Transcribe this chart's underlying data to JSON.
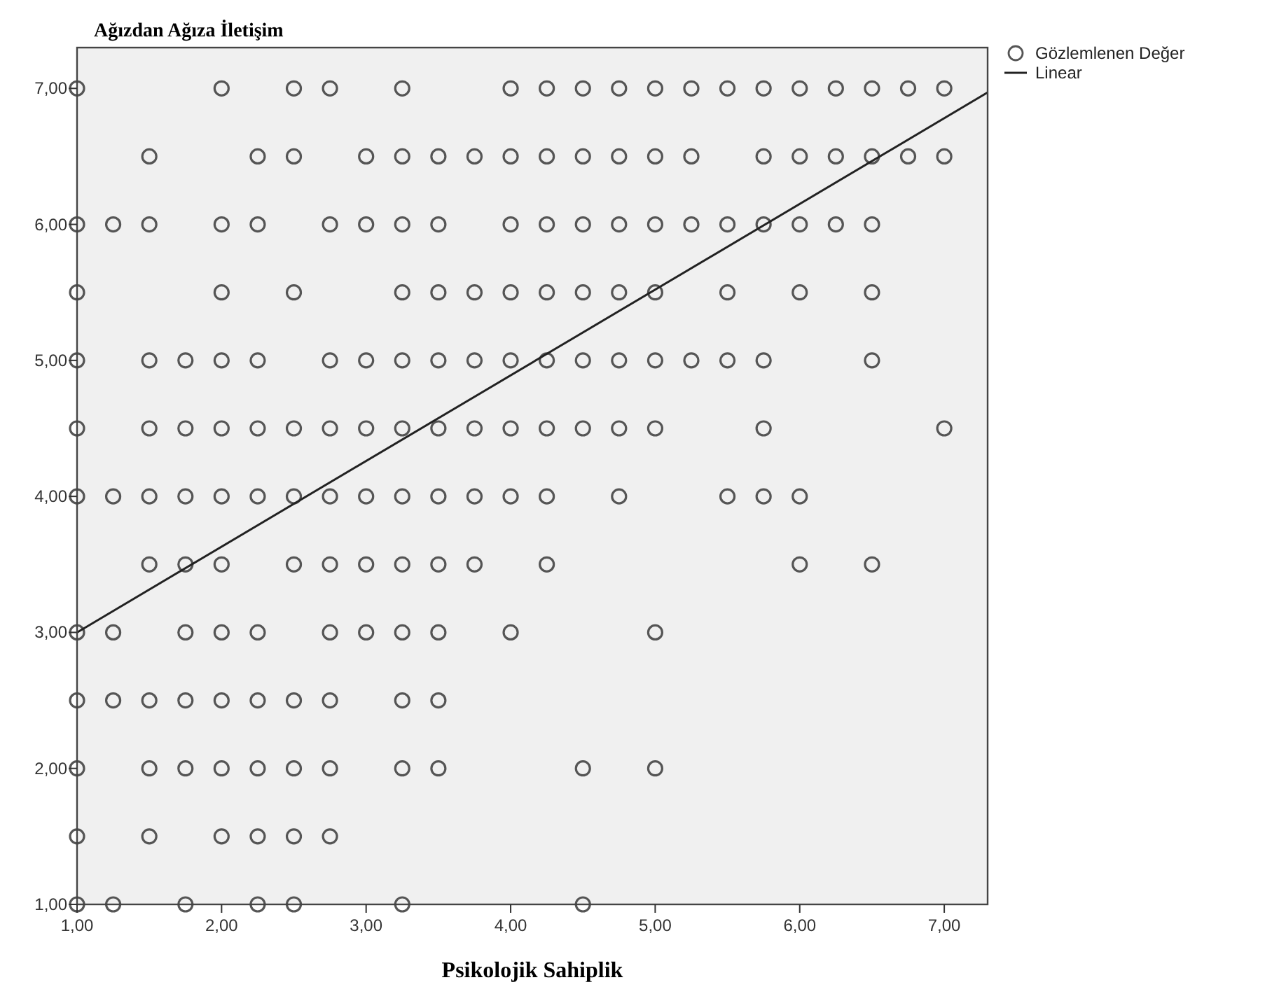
{
  "chart_data": {
    "type": "scatter",
    "ylabel": "Ağızdan Ağıza İletişim",
    "xlabel": "Psikolojik Sahiplik",
    "xlim": [
      1,
      7.3
    ],
    "ylim": [
      1,
      7.3
    ],
    "xticks": [
      {
        "value": 1,
        "label": "1,00"
      },
      {
        "value": 2,
        "label": "2,00"
      },
      {
        "value": 3,
        "label": "3,00"
      },
      {
        "value": 4,
        "label": "4,00"
      },
      {
        "value": 5,
        "label": "5,00"
      },
      {
        "value": 6,
        "label": "6,00"
      },
      {
        "value": 7,
        "label": "7,00"
      }
    ],
    "yticks": [
      {
        "value": 1,
        "label": "1,00"
      },
      {
        "value": 2,
        "label": "2,00"
      },
      {
        "value": 3,
        "label": "3,00"
      },
      {
        "value": 4,
        "label": "4,00"
      },
      {
        "value": 5,
        "label": "5,00"
      },
      {
        "value": 6,
        "label": "6,00"
      },
      {
        "value": 7,
        "label": "7,00"
      }
    ],
    "grid": false,
    "legend": "top right",
    "series": [
      {
        "name": "Gözlemlenen Değer",
        "marker": "circle",
        "color": "#555555",
        "x": [
          1,
          2,
          2.5,
          2.75,
          3.25,
          4,
          4.25,
          4.5,
          4.75,
          5,
          5.25,
          5.5,
          5.75,
          6,
          6.25,
          6.5,
          6.75,
          7,
          1.5,
          2.25,
          2.5,
          3,
          3.25,
          3.5,
          3.75,
          4,
          4.25,
          4.5,
          4.75,
          5,
          5.25,
          5.75,
          6,
          6.25,
          6.5,
          6.75,
          7,
          1,
          1.25,
          1.5,
          2,
          2.25,
          2.75,
          3,
          3.25,
          3.5,
          4,
          4.25,
          4.5,
          4.75,
          5,
          5.25,
          5.5,
          5.75,
          6,
          6.25,
          6.5,
          1,
          2,
          2.5,
          3.25,
          3.5,
          3.75,
          4,
          4.25,
          4.5,
          4.75,
          5,
          5.5,
          6,
          6.5,
          1,
          1.5,
          1.75,
          2,
          2.25,
          2.75,
          3,
          3.25,
          3.5,
          3.75,
          4,
          4.25,
          4.5,
          4.75,
          5,
          5.25,
          5.5,
          5.75,
          6.5,
          1,
          1.5,
          1.75,
          2,
          2.25,
          2.5,
          2.75,
          3,
          3.25,
          3.5,
          3.75,
          4,
          4.25,
          4.5,
          4.75,
          5,
          5.75,
          7,
          1,
          1.25,
          1.5,
          1.75,
          2,
          2.25,
          2.5,
          2.75,
          3,
          3.25,
          3.5,
          3.75,
          4,
          4.25,
          4.75,
          5.5,
          5.75,
          6,
          1.5,
          1.75,
          2,
          2.5,
          2.75,
          3,
          3.25,
          3.5,
          3.75,
          4.25,
          6,
          6.5,
          1,
          1.25,
          1.75,
          2,
          2.25,
          2.75,
          3,
          3.25,
          3.5,
          4,
          5,
          1,
          1.25,
          1.5,
          1.75,
          2,
          2.25,
          2.5,
          2.75,
          3.25,
          3.5,
          1,
          1.5,
          1.75,
          2,
          2.25,
          2.5,
          2.75,
          3.25,
          3.5,
          4.5,
          5,
          1,
          1.5,
          2,
          2.25,
          2.5,
          2.75,
          1,
          1.25,
          1.75,
          2.25,
          2.5,
          3.25,
          4.5
        ],
        "values": [
          7,
          7,
          7,
          7,
          7,
          7,
          7,
          7,
          7,
          7,
          7,
          7,
          7,
          7,
          7,
          7,
          7,
          7,
          6.5,
          6.5,
          6.5,
          6.5,
          6.5,
          6.5,
          6.5,
          6.5,
          6.5,
          6.5,
          6.5,
          6.5,
          6.5,
          6.5,
          6.5,
          6.5,
          6.5,
          6.5,
          6.5,
          6,
          6,
          6,
          6,
          6,
          6,
          6,
          6,
          6,
          6,
          6,
          6,
          6,
          6,
          6,
          6,
          6,
          6,
          6,
          6,
          5.5,
          5.5,
          5.5,
          5.5,
          5.5,
          5.5,
          5.5,
          5.5,
          5.5,
          5.5,
          5.5,
          5.5,
          5.5,
          5.5,
          5,
          5,
          5,
          5,
          5,
          5,
          5,
          5,
          5,
          5,
          5,
          5,
          5,
          5,
          5,
          5,
          5,
          5,
          5,
          4.5,
          4.5,
          4.5,
          4.5,
          4.5,
          4.5,
          4.5,
          4.5,
          4.5,
          4.5,
          4.5,
          4.5,
          4.5,
          4.5,
          4.5,
          4.5,
          4.5,
          4.5,
          4,
          4,
          4,
          4,
          4,
          4,
          4,
          4,
          4,
          4,
          4,
          4,
          4,
          4,
          4,
          4,
          4,
          4,
          3.5,
          3.5,
          3.5,
          3.5,
          3.5,
          3.5,
          3.5,
          3.5,
          3.5,
          3.5,
          3.5,
          3.5,
          3,
          3,
          3,
          3,
          3,
          3,
          3,
          3,
          3,
          3,
          3,
          2.5,
          2.5,
          2.5,
          2.5,
          2.5,
          2.5,
          2.5,
          2.5,
          2.5,
          2.5,
          2,
          2,
          2,
          2,
          2,
          2,
          2,
          2,
          2,
          2,
          2,
          1.5,
          1.5,
          1.5,
          1.5,
          1.5,
          1.5,
          1,
          1,
          1,
          1,
          1,
          1,
          1
        ]
      },
      {
        "name": "Linear",
        "type": "line",
        "marker": "none",
        "color": "#222222",
        "x": [
          1,
          7.3
        ],
        "values": [
          3.0,
          6.97
        ]
      }
    ]
  }
}
